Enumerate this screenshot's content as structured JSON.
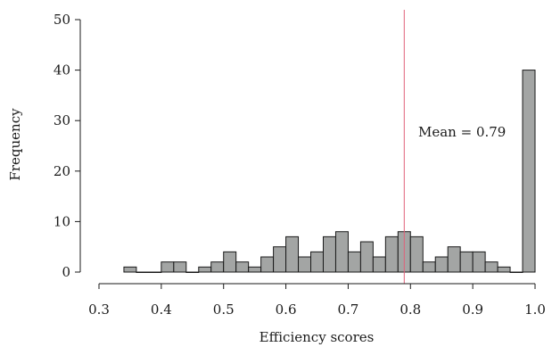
{
  "chart_data": {
    "type": "bar",
    "xlabel": "Efficiency scores",
    "ylabel": "Frequency",
    "xlim": [
      0.3,
      1.0
    ],
    "ylim": [
      0,
      50
    ],
    "x_ticks": [
      "0.3",
      "0.4",
      "0.5",
      "0.6",
      "0.7",
      "0.8",
      "0.9",
      "1.0"
    ],
    "y_ticks": [
      "0",
      "10",
      "20",
      "30",
      "40",
      "50"
    ],
    "bin_width": 0.02,
    "bins": [
      {
        "x0": 0.34,
        "count": 1
      },
      {
        "x0": 0.36,
        "count": 0
      },
      {
        "x0": 0.38,
        "count": 0
      },
      {
        "x0": 0.4,
        "count": 2
      },
      {
        "x0": 0.42,
        "count": 2
      },
      {
        "x0": 0.44,
        "count": 0
      },
      {
        "x0": 0.46,
        "count": 1
      },
      {
        "x0": 0.48,
        "count": 2
      },
      {
        "x0": 0.5,
        "count": 4
      },
      {
        "x0": 0.52,
        "count": 2
      },
      {
        "x0": 0.54,
        "count": 1
      },
      {
        "x0": 0.56,
        "count": 3
      },
      {
        "x0": 0.58,
        "count": 5
      },
      {
        "x0": 0.6,
        "count": 7
      },
      {
        "x0": 0.62,
        "count": 3
      },
      {
        "x0": 0.64,
        "count": 4
      },
      {
        "x0": 0.66,
        "count": 7
      },
      {
        "x0": 0.68,
        "count": 8
      },
      {
        "x0": 0.7,
        "count": 4
      },
      {
        "x0": 0.72,
        "count": 6
      },
      {
        "x0": 0.74,
        "count": 3
      },
      {
        "x0": 0.76,
        "count": 7
      },
      {
        "x0": 0.78,
        "count": 8
      },
      {
        "x0": 0.8,
        "count": 7
      },
      {
        "x0": 0.82,
        "count": 2
      },
      {
        "x0": 0.84,
        "count": 3
      },
      {
        "x0": 0.86,
        "count": 5
      },
      {
        "x0": 0.88,
        "count": 4
      },
      {
        "x0": 0.9,
        "count": 4
      },
      {
        "x0": 0.92,
        "count": 2
      },
      {
        "x0": 0.94,
        "count": 1
      },
      {
        "x0": 0.96,
        "count": 0
      },
      {
        "x0": 0.98,
        "count": 40
      }
    ],
    "mean": 0.79,
    "mean_label": "Mean = 0.79",
    "mean_line_color": "#e0607a",
    "bar_color": "#a3a5a4",
    "grid": false
  }
}
